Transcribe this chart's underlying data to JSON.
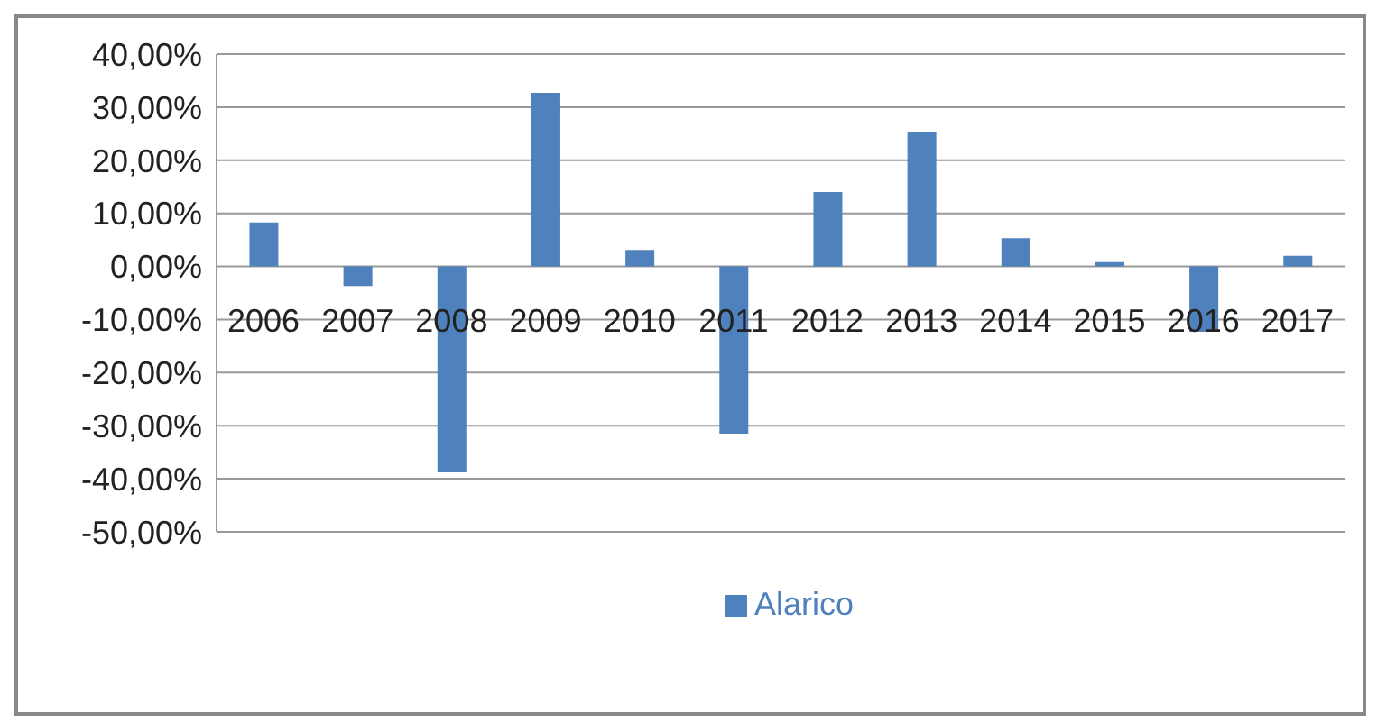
{
  "chart_data": {
    "type": "bar",
    "categories": [
      "2006",
      "2007",
      "2008",
      "2009",
      "2010",
      "2011",
      "2012",
      "2013",
      "2014",
      "2015",
      "2016",
      "2017"
    ],
    "series": [
      {
        "name": "Alarico",
        "color": "#4f81bd",
        "values": [
          8.3,
          -3.7,
          -38.8,
          32.7,
          3.1,
          -31.5,
          14.0,
          25.4,
          5.3,
          0.8,
          -12.3,
          2.0
        ]
      }
    ],
    "ylim": [
      -50,
      40
    ],
    "yticks": [
      {
        "value": -50,
        "label": "-50,00%"
      },
      {
        "value": -40,
        "label": "-40,00%"
      },
      {
        "value": -30,
        "label": "-30,00%"
      },
      {
        "value": -20,
        "label": "-20,00%"
      },
      {
        "value": -10,
        "label": "-10,00%"
      },
      {
        "value": 0,
        "label": "0,00%"
      },
      {
        "value": 10,
        "label": "10,00%"
      },
      {
        "value": 20,
        "label": "20,00%"
      },
      {
        "value": 30,
        "label": "30,00%"
      },
      {
        "value": 40,
        "label": "40,00%"
      }
    ],
    "grid": "y",
    "legend": "bottom"
  }
}
